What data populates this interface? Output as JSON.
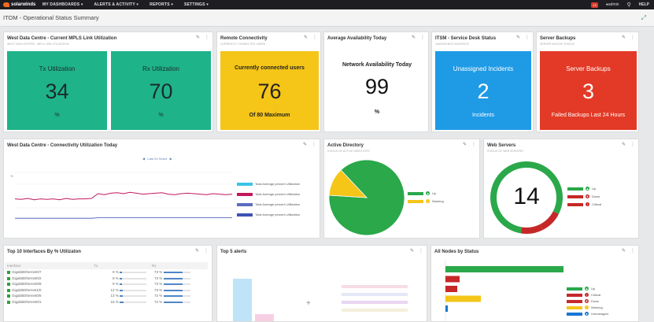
{
  "topnav": {
    "brand": "solarwinds",
    "items": [
      "MY DASHBOARDS",
      "ALERTS & ACTIVITY",
      "REPORTS",
      "SETTINGS"
    ],
    "alert_count": "13",
    "user": "admin",
    "help": "HELP"
  },
  "page": {
    "title": "ITOM - Operational Status Summary"
  },
  "widgets": {
    "mpls": {
      "title": "West Data Centre - Current MPLS Link Utilization",
      "subtitle": "WEST DATA CENTRE - MPLS LINK UTILIZATION",
      "tx": {
        "label": "Tx Utilization",
        "value": "34",
        "unit": "%"
      },
      "rx": {
        "label": "Rx Utilization",
        "value": "70",
        "unit": "%"
      }
    },
    "remote": {
      "title": "Remote Connectivity",
      "subtitle": "CURRENTLY CONNECTED USERS",
      "label": "Currently connected users",
      "value": "76",
      "footer": "Of 80 Maximum"
    },
    "availability": {
      "title": "Average Availability Today",
      "label": "Network Availability Today",
      "value": "99",
      "unit": "%"
    },
    "servicedesk": {
      "title": "ITSM - Service Desk Status",
      "subtitle": "UNASSIGNED INCIDENTS",
      "label": "Unassigned Incidents",
      "value": "2",
      "footer": "Incidents"
    },
    "backups": {
      "title": "Server Backups",
      "subtitle": "SERVER BACKUP STATUS",
      "label": "Server Backups",
      "value": "3",
      "footer": "Failed Backups Last 24 Hours"
    },
    "connectivity": {
      "title": "West Data Centre - Connectivity Utilization Today",
      "range_label": "Last 24 Hours",
      "legend": [
        {
          "label": "Total Average percent Utilization",
          "color": "#3bc3e6"
        },
        {
          "label": "Total Average percent Utilization",
          "color": "#c2185b"
        },
        {
          "label": "Total Average percent Utilization",
          "color": "#5c6bc0"
        },
        {
          "label": "Total Average percent Utilization",
          "color": "#3f51b5"
        }
      ]
    },
    "ad": {
      "title": "Active Directory",
      "subtitle": "STATUS OF ACTIVE DIRECTORY",
      "legend": [
        {
          "label": "Up",
          "color": "#2aa84a"
        },
        {
          "label": "Warning",
          "color": "#f5c518"
        }
      ]
    },
    "web": {
      "title": "Web Servers",
      "subtitle": "STATUS OF WEB SERVERS",
      "value": "14",
      "legend": [
        {
          "label": "Up",
          "color": "#2aa84a"
        },
        {
          "label": "Down",
          "color": "#c62828"
        },
        {
          "label": "Critical",
          "color": "#c62828"
        }
      ]
    },
    "interfaces": {
      "title": "Top 10 Interfaces By % Utilizaton",
      "columns": [
        "Interface",
        "Tx",
        "Rx"
      ],
      "rows": [
        {
          "name": "GigabitEthernet0/7",
          "tx": "9 %",
          "rx": "73 %"
        },
        {
          "name": "GigabitEthernet0/2",
          "tx": "9 %",
          "rx": "73 %"
        },
        {
          "name": "GigabitEthernet0/9",
          "tx": "9 %",
          "rx": "73 %"
        },
        {
          "name": "GigabitEthernet1/0",
          "tx": "12 %",
          "rx": "73 %"
        },
        {
          "name": "GigabitEthernet0/8",
          "tx": "13 %",
          "rx": "72 %"
        },
        {
          "name": "GigabitEthernet0/1",
          "tx": "15 %",
          "rx": "72 %"
        }
      ]
    },
    "alerts": {
      "title": "Top 5 alerts"
    },
    "nodes": {
      "title": "All Nodes by Status",
      "legend": [
        {
          "label": "Up",
          "color": "#2aa84a"
        },
        {
          "label": "Critical",
          "color": "#c62828"
        },
        {
          "label": "Down",
          "color": "#c62828"
        },
        {
          "label": "Warning",
          "color": "#f5c518"
        },
        {
          "label": "Unmanaged",
          "color": "#1976d2"
        }
      ]
    }
  },
  "chart_data": [
    {
      "type": "line",
      "ylabel": "%",
      "series": [
        {
          "color": "#c2185b",
          "values": [
            44,
            43,
            45,
            42,
            44,
            43,
            44,
            42,
            45,
            43,
            44,
            44,
            45,
            55,
            53,
            56,
            57,
            55,
            58,
            56,
            54,
            55,
            56,
            57,
            54,
            53,
            55,
            56,
            55,
            54,
            53,
            55,
            54,
            53,
            54
          ]
        },
        {
          "color": "#3f51b5",
          "values": [
            3,
            3,
            3,
            3,
            3,
            3,
            3,
            3,
            3,
            3,
            3,
            3,
            3,
            4,
            4,
            4,
            4,
            4,
            4,
            4,
            4,
            4,
            4,
            4,
            4,
            4,
            4,
            4,
            4,
            4,
            4,
            4,
            4,
            4,
            4
          ]
        }
      ]
    },
    {
      "type": "pie",
      "categories": [
        "Up",
        "Warning"
      ],
      "values": [
        88,
        12
      ]
    },
    {
      "type": "pie",
      "categories": [
        "Up",
        "Down",
        "Critical"
      ],
      "values": [
        80,
        10,
        10
      ]
    },
    {
      "type": "bar",
      "categories": [
        "Up",
        "Critical",
        "Down",
        "Warning",
        "Unmanaged"
      ],
      "values": [
        100,
        12,
        10,
        30,
        2
      ]
    },
    {
      "type": "bar",
      "categories": [
        "1",
        "2"
      ],
      "values": [
        90,
        15
      ]
    }
  ]
}
